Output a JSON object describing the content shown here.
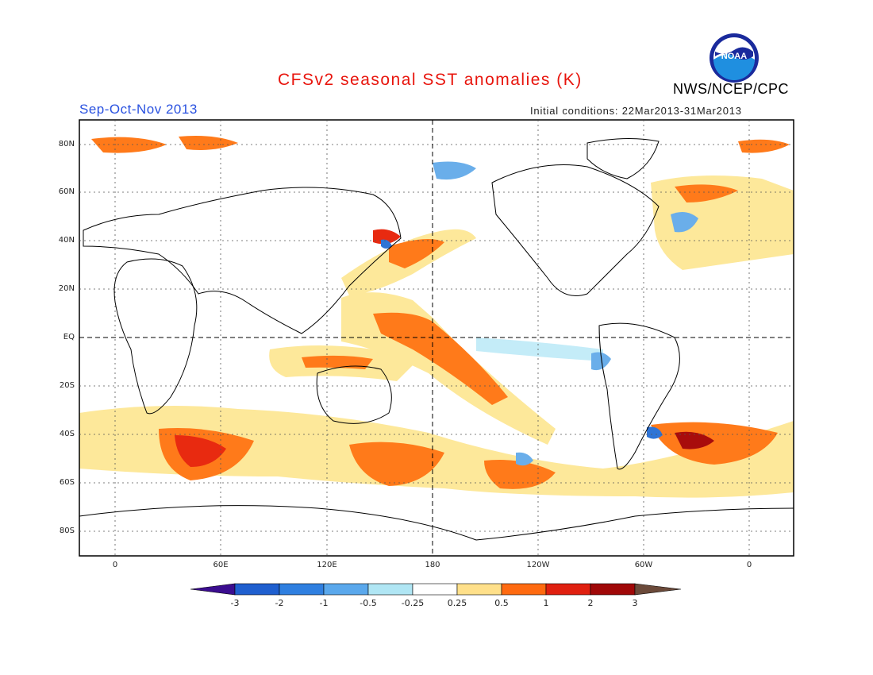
{
  "title": "CFSv2 seasonal SST anomalies (K)",
  "agency": "NWS/NCEP/CPC",
  "logo_text": "NOAA",
  "season": "Sep-Oct-Nov 2013",
  "initial_conditions": "Initial conditions: 22Mar2013-31Mar2013",
  "lat_labels": [
    "80N",
    "60N",
    "40N",
    "20N",
    "EQ",
    "20S",
    "40S",
    "60S",
    "80S"
  ],
  "lon_labels": [
    "0",
    "60E",
    "120E",
    "180",
    "120W",
    "60W",
    "0"
  ],
  "colorbar": {
    "labels": [
      "-3",
      "-2",
      "-1",
      "-0.5",
      "-0.25",
      "0.25",
      "0.5",
      "1",
      "2",
      "3"
    ],
    "colors": [
      "#3b0d8f",
      "#1f5fcf",
      "#2f7fe0",
      "#5aa8ec",
      "#b0e6f4",
      "#ffffff",
      "#ffe08a",
      "#ff6a10",
      "#e02010",
      "#a00808",
      "#6b4a3a"
    ]
  },
  "colors": {
    "title": "#e8140c",
    "season": "#2a52e0",
    "land_outline": "#000000",
    "ocean": "#ffffff",
    "anomaly_warm_025": "#fde89a",
    "anomaly_warm_05": "#ff7a1a",
    "anomaly_warm_1": "#e82a10",
    "anomaly_warm_2": "#a80c0c",
    "anomaly_cool_025": "#c4ecf8",
    "anomaly_cool_05": "#6aaeea",
    "anomaly_cool_1": "#2f74d6"
  }
}
